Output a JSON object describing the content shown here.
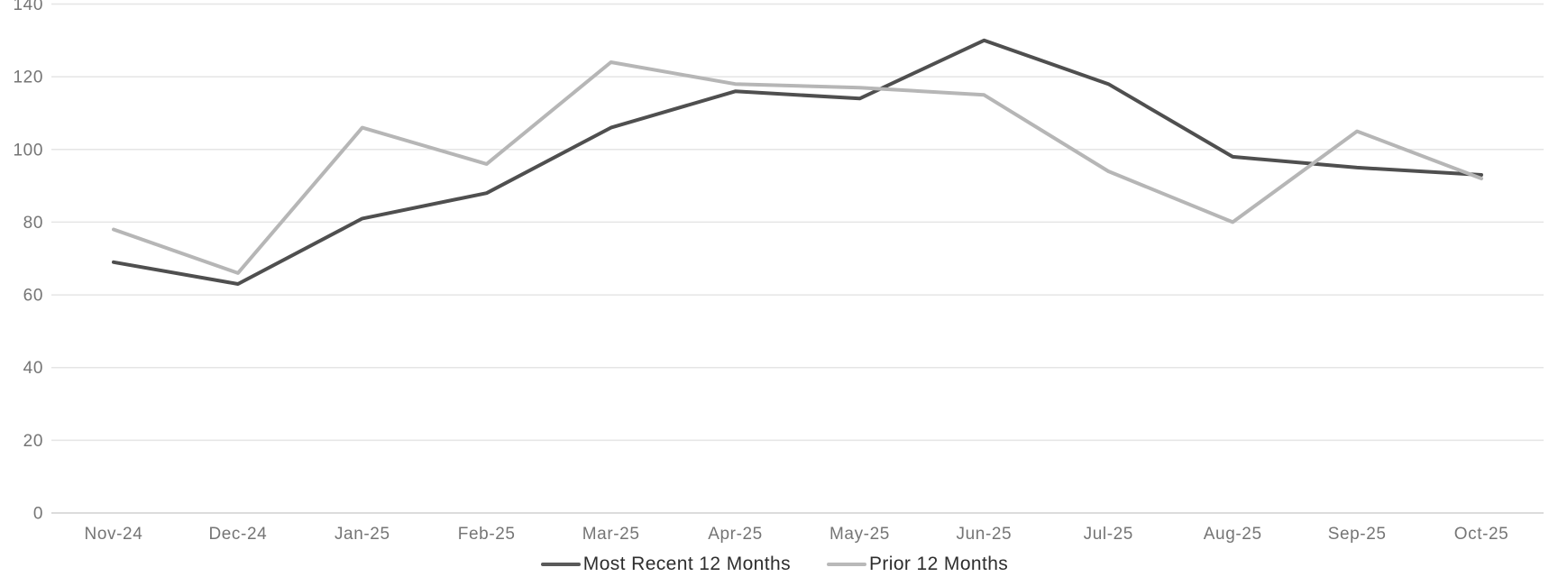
{
  "chart_data": {
    "type": "line",
    "title": "",
    "xlabel": "",
    "ylabel": "",
    "categories": [
      "Nov-24",
      "Dec-24",
      "Jan-25",
      "Feb-25",
      "Mar-25",
      "Apr-25",
      "May-25",
      "Jun-25",
      "Jul-25",
      "Aug-25",
      "Sep-25",
      "Oct-25"
    ],
    "series": [
      {
        "name": "Most Recent 12 Months",
        "color": "#4f4f4f",
        "values": [
          69,
          63,
          81,
          88,
          106,
          116,
          114,
          130,
          118,
          98,
          95,
          93
        ]
      },
      {
        "name": "Prior 12 Months",
        "color": "#b6b6b6",
        "values": [
          78,
          66,
          106,
          96,
          124,
          118,
          117,
          115,
          94,
          80,
          105,
          92
        ]
      }
    ],
    "ylim": [
      0,
      140
    ],
    "ytick_step": 20,
    "ytick_labels": [
      "0",
      "20",
      "40",
      "60",
      "80",
      "100",
      "120",
      "140"
    ],
    "grid": "horizontal",
    "legend_position": "bottom-center"
  },
  "colors": {
    "background": "#ffffff",
    "gridline": "#e5e5e5",
    "zero_axis_line": "#d0d0d0",
    "tick_label": "#757575",
    "legend_text": "#2e2e2e",
    "series_most_recent": "#4f4f4f",
    "series_prior": "#b6b6b6"
  }
}
